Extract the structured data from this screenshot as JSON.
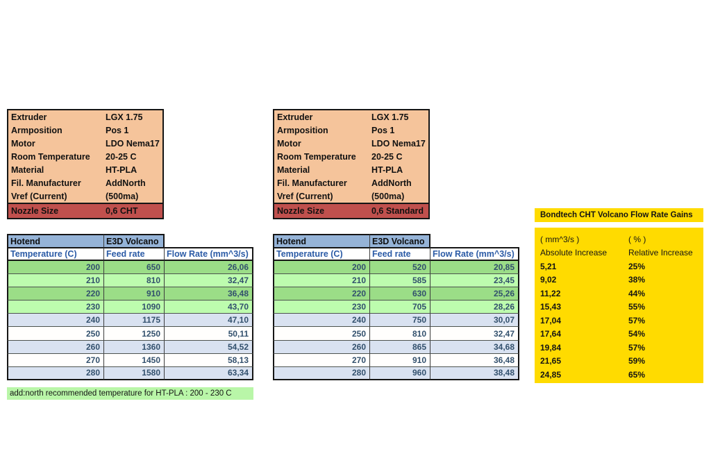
{
  "colors": {
    "card-bg": "#F5C49B",
    "card-accent": "#C0504D",
    "header-blue": "#95B3D7",
    "header-text-blue": "#2B5BA6",
    "value-text-blue": "#32506D",
    "green-dark": "#9BDD87",
    "green-light": "#BDFCAE",
    "lavender": "#D9E2F1",
    "note-green": "#B9F6A8",
    "yellow": "#FFDB00",
    "border-dark": "#151515"
  },
  "info_boxes": [
    {
      "rows": [
        {
          "label": "Extruder",
          "value": "LGX 1.75"
        },
        {
          "label": "Armposition",
          "value": "Pos 1"
        },
        {
          "label": "Motor",
          "value": "LDO Nema17"
        },
        {
          "label": "Room Temperature",
          "value": "20-25 C"
        },
        {
          "label": "Material",
          "value": "HT-PLA"
        },
        {
          "label": "Fil. Manufacturer",
          "value": "AddNorth"
        },
        {
          "label": "Vref (Current)",
          "value": "(500ma)"
        }
      ],
      "nozzle": {
        "label": "Nozzle Size",
        "value": "0,6 CHT"
      }
    },
    {
      "rows": [
        {
          "label": "Extruder",
          "value": "LGX 1.75"
        },
        {
          "label": "Armposition",
          "value": "Pos 1"
        },
        {
          "label": "Motor",
          "value": "LDO Nema17"
        },
        {
          "label": "Room Temperature",
          "value": "20-25 C"
        },
        {
          "label": "Material",
          "value": "HT-PLA"
        },
        {
          "label": "Fil. Manufacturer",
          "value": "AddNorth"
        },
        {
          "label": "Vref (Current)",
          "value": "(500ma)"
        }
      ],
      "nozzle": {
        "label": "Nozzle Size",
        "value": "0,6 Standard"
      }
    }
  ],
  "flow_tables": [
    {
      "group_header": {
        "col1": "Hotend",
        "col2": "E3D Volcano"
      },
      "columns": [
        "Temperature (C)",
        "Feed rate",
        "Flow Rate (mm^3/s)"
      ],
      "rows": [
        [
          "200",
          "650",
          "26,06"
        ],
        [
          "210",
          "810",
          "32,47"
        ],
        [
          "220",
          "910",
          "36,48"
        ],
        [
          "230",
          "1090",
          "43,70"
        ],
        [
          "240",
          "1175",
          "47,10"
        ],
        [
          "250",
          "1250",
          "50,11"
        ],
        [
          "260",
          "1360",
          "54,52"
        ],
        [
          "270",
          "1450",
          "58,13"
        ],
        [
          "280",
          "1580",
          "63,34"
        ]
      ]
    },
    {
      "group_header": {
        "col1": "Hotend",
        "col2": "E3D Volcano"
      },
      "columns": [
        "Temperature (C)",
        "Feed rate",
        "Flow Rate (mm^3/s)"
      ],
      "rows": [
        [
          "200",
          "520",
          "20,85"
        ],
        [
          "210",
          "585",
          "23,45"
        ],
        [
          "220",
          "630",
          "25,26"
        ],
        [
          "230",
          "705",
          "28,26"
        ],
        [
          "240",
          "750",
          "30,07"
        ],
        [
          "250",
          "810",
          "32,47"
        ],
        [
          "260",
          "865",
          "34,68"
        ],
        [
          "270",
          "910",
          "36,48"
        ],
        [
          "280",
          "960",
          "38,48"
        ]
      ]
    }
  ],
  "note": {
    "text": "add:north recommended temperature for HT-PLA : 200 - 230 C"
  },
  "gains": {
    "title": "Bondtech CHT Volcano Flow Rate Gains",
    "unit_row": [
      "( mm^3/s )",
      "( % )"
    ],
    "header_row": [
      "Absolute Increase",
      "Relative Increase"
    ],
    "rows": [
      [
        "5,21",
        "25%"
      ],
      [
        "9,02",
        "38%"
      ],
      [
        "11,22",
        "44%"
      ],
      [
        "15,43",
        "55%"
      ],
      [
        "17,04",
        "57%"
      ],
      [
        "17,64",
        "54%"
      ],
      [
        "19,84",
        "57%"
      ],
      [
        "21,65",
        "59%"
      ],
      [
        "24,85",
        "65%"
      ]
    ]
  }
}
